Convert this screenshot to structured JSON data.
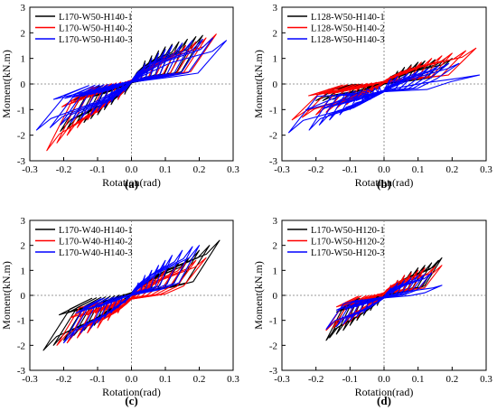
{
  "chart_data": [
    {
      "type": "line",
      "panel_label": "(a)",
      "xlabel": "Rotation(rad)",
      "ylabel": "Moment(kN.m)",
      "xlim": [
        -0.3,
        0.3
      ],
      "ylim": [
        -3,
        3
      ],
      "xticks": [
        "-0.3",
        "-0.2",
        "-0.1",
        "0.0",
        "0.1",
        "0.2",
        "0.3"
      ],
      "yticks": [
        "-3",
        "-2",
        "-1",
        "0",
        "1",
        "2",
        "3"
      ],
      "legend_position": "top-left",
      "series": [
        {
          "name": "L170-W50-H140-1",
          "color": "#000000",
          "amps": [
            0.02,
            0.04,
            0.06,
            0.08,
            0.1,
            0.12,
            0.14,
            0.165,
            0.19,
            0.21
          ],
          "mpos": [
            0.5,
            0.9,
            1.1,
            1.3,
            1.45,
            1.55,
            1.65,
            1.75,
            1.85,
            1.9
          ],
          "mneg": [
            -0.4,
            -0.6,
            -0.8,
            -1.0,
            -1.2,
            -1.35,
            -1.5,
            -1.6,
            -1.75,
            -1.85
          ],
          "base": 0.1
        },
        {
          "name": "L170-W50-H140-2",
          "color": "#ff0000",
          "amps": [
            0.02,
            0.04,
            0.07,
            0.1,
            0.13,
            0.16,
            0.19,
            0.22,
            0.25
          ],
          "mpos": [
            0.4,
            0.7,
            0.9,
            1.1,
            1.3,
            1.5,
            1.65,
            1.8,
            1.95
          ],
          "mneg": [
            -0.3,
            -0.6,
            -0.8,
            -1.1,
            -1.4,
            -1.7,
            -2.0,
            -2.3,
            -2.6
          ],
          "base": 0.15
        },
        {
          "name": "L170-W50-H140-3",
          "color": "#0000ff",
          "amps": [
            0.02,
            0.04,
            0.06,
            0.08,
            0.1,
            0.12,
            0.15,
            0.18,
            0.21,
            0.24,
            0.28
          ],
          "mpos": [
            0.5,
            0.8,
            1.0,
            1.2,
            1.35,
            1.5,
            1.6,
            1.7,
            1.75,
            1.8,
            1.7
          ],
          "mneg": [
            -0.3,
            -0.5,
            -0.7,
            -0.9,
            -1.05,
            -1.2,
            -1.35,
            -1.5,
            -1.6,
            -1.7,
            -1.8
          ],
          "base": 0.12
        }
      ]
    },
    {
      "type": "line",
      "panel_label": "(b)",
      "xlabel": "Rotation(rad)",
      "ylabel": "Moment(kN.m)",
      "xlim": [
        -0.3,
        0.3
      ],
      "ylim": [
        -3,
        3
      ],
      "xticks": [
        "-0.3",
        "-0.2",
        "-0.1",
        "0.0",
        "0.1",
        "0.2",
        "0.3"
      ],
      "yticks": [
        "-3",
        "-2",
        "-1",
        "0",
        "1",
        "2",
        "3"
      ],
      "legend_position": "top-left",
      "series": [
        {
          "name": "L128-W50-H140-1",
          "color": "#000000",
          "amps": [
            0.02,
            0.04,
            0.06,
            0.08,
            0.1,
            0.12,
            0.15,
            0.18,
            0.2
          ],
          "mpos": [
            0.3,
            0.5,
            0.65,
            0.75,
            0.85,
            0.9,
            0.95,
            1.0,
            1.0
          ],
          "mneg": [
            -0.2,
            -0.35,
            -0.45,
            -0.5,
            -0.55,
            -0.6,
            -0.6,
            -0.65,
            -0.65
          ],
          "base": 0.05
        },
        {
          "name": "L128-W50-H140-2",
          "color": "#ff0000",
          "amps": [
            0.02,
            0.05,
            0.08,
            0.11,
            0.14,
            0.17,
            0.2,
            0.24,
            0.27
          ],
          "mpos": [
            0.3,
            0.5,
            0.7,
            0.85,
            1.0,
            1.1,
            1.2,
            1.3,
            1.4
          ],
          "mneg": [
            -0.2,
            -0.4,
            -0.6,
            -0.8,
            -0.95,
            -1.1,
            -1.2,
            -1.3,
            -1.4
          ],
          "base": 0.1
        },
        {
          "name": "L128-W50-H140-3",
          "color": "#0000ff",
          "amps": [
            0.02,
            0.04,
            0.07,
            0.1,
            0.13,
            0.16,
            0.19,
            0.22,
            0.28
          ],
          "mpos": [
            0.2,
            0.3,
            0.4,
            0.5,
            0.6,
            0.7,
            0.8,
            0.8,
            0.35
          ],
          "mneg": [
            -0.4,
            -0.6,
            -0.8,
            -1.0,
            -1.2,
            -1.4,
            -1.6,
            -1.8,
            -1.9
          ],
          "base": -0.25
        }
      ]
    },
    {
      "type": "line",
      "panel_label": "(c)",
      "xlabel": "Rotation(rad)",
      "ylabel": "Moment(kN.m)",
      "xlim": [
        -0.3,
        0.3
      ],
      "ylim": [
        -3,
        3
      ],
      "xticks": [
        "-0.3",
        "-0.2",
        "-0.1",
        "0.0",
        "0.1",
        "0.2",
        "0.3"
      ],
      "yticks": [
        "-3",
        "-2",
        "-1",
        "0",
        "1",
        "2",
        "3"
      ],
      "legend_position": "top-left",
      "series": [
        {
          "name": "L170-W40-H140-1",
          "color": "#000000",
          "amps": [
            0.02,
            0.05,
            0.08,
            0.11,
            0.14,
            0.17,
            0.2,
            0.23,
            0.26
          ],
          "mpos": [
            0.4,
            0.7,
            0.9,
            1.1,
            1.3,
            1.5,
            1.8,
            2.0,
            2.2
          ],
          "mneg": [
            -0.3,
            -0.6,
            -0.9,
            -1.2,
            -1.4,
            -1.6,
            -1.8,
            -2.0,
            -2.2
          ],
          "base": 0.1
        },
        {
          "name": "L170-W40-H140-2",
          "color": "#ff0000",
          "amps": [
            0.02,
            0.04,
            0.07,
            0.1,
            0.13,
            0.16,
            0.19,
            0.22
          ],
          "mpos": [
            0.4,
            0.6,
            0.8,
            1.0,
            1.1,
            1.3,
            1.4,
            1.5
          ],
          "mneg": [
            -0.4,
            -0.7,
            -1.0,
            -1.3,
            -1.5,
            -1.7,
            -1.9,
            -2.0
          ],
          "base": -0.1
        },
        {
          "name": "L170-W40-H140-3",
          "color": "#0000ff",
          "amps": [
            0.02,
            0.04,
            0.06,
            0.08,
            0.1,
            0.12,
            0.15,
            0.18,
            0.2
          ],
          "mpos": [
            0.5,
            0.8,
            1.0,
            1.2,
            1.4,
            1.6,
            1.8,
            1.95,
            2.0
          ],
          "mneg": [
            -0.3,
            -0.5,
            -0.7,
            -0.9,
            -1.1,
            -1.3,
            -1.5,
            -1.7,
            -1.9
          ],
          "base": 0.05
        }
      ]
    },
    {
      "type": "line",
      "panel_label": "(d)",
      "xlabel": "Rotation(rad)",
      "ylabel": "Moment(kN.m)",
      "xlim": [
        -0.3,
        0.3
      ],
      "ylim": [
        -3,
        3
      ],
      "xticks": [
        "-0.3",
        "-0.2",
        "-0.1",
        "0.0",
        "0.1",
        "0.2",
        "0.3"
      ],
      "yticks": [
        "-3",
        "-2",
        "-1",
        "0",
        "1",
        "2",
        "3"
      ],
      "legend_position": "top-left",
      "series": [
        {
          "name": "L170-W50-H120-1",
          "color": "#000000",
          "amps": [
            0.02,
            0.04,
            0.06,
            0.08,
            0.1,
            0.12,
            0.14,
            0.16,
            0.17
          ],
          "mpos": [
            0.4,
            0.6,
            0.8,
            0.95,
            1.1,
            1.2,
            1.3,
            1.4,
            1.5
          ],
          "mneg": [
            -0.4,
            -0.6,
            -0.8,
            -1.0,
            -1.2,
            -1.4,
            -1.55,
            -1.7,
            -1.8
          ],
          "base": 0.05
        },
        {
          "name": "L170-W50-H120-2",
          "color": "#ff0000",
          "amps": [
            0.02,
            0.04,
            0.06,
            0.08,
            0.1,
            0.12,
            0.15,
            0.17
          ],
          "mpos": [
            0.4,
            0.6,
            0.8,
            0.9,
            1.0,
            1.1,
            1.15,
            1.2
          ],
          "mneg": [
            -0.3,
            -0.5,
            -0.7,
            -0.9,
            -1.05,
            -1.2,
            -1.3,
            -1.4
          ],
          "base": 0.1
        },
        {
          "name": "L170-W50-H120-3",
          "color": "#0000ff",
          "amps": [
            0.02,
            0.04,
            0.06,
            0.08,
            0.1,
            0.12,
            0.14,
            0.17
          ],
          "mpos": [
            0.3,
            0.5,
            0.6,
            0.7,
            0.8,
            0.85,
            0.9,
            0.4
          ],
          "mneg": [
            -0.3,
            -0.5,
            -0.7,
            -0.85,
            -1.0,
            -1.15,
            -1.25,
            -1.35
          ],
          "base": -0.05
        }
      ]
    }
  ]
}
